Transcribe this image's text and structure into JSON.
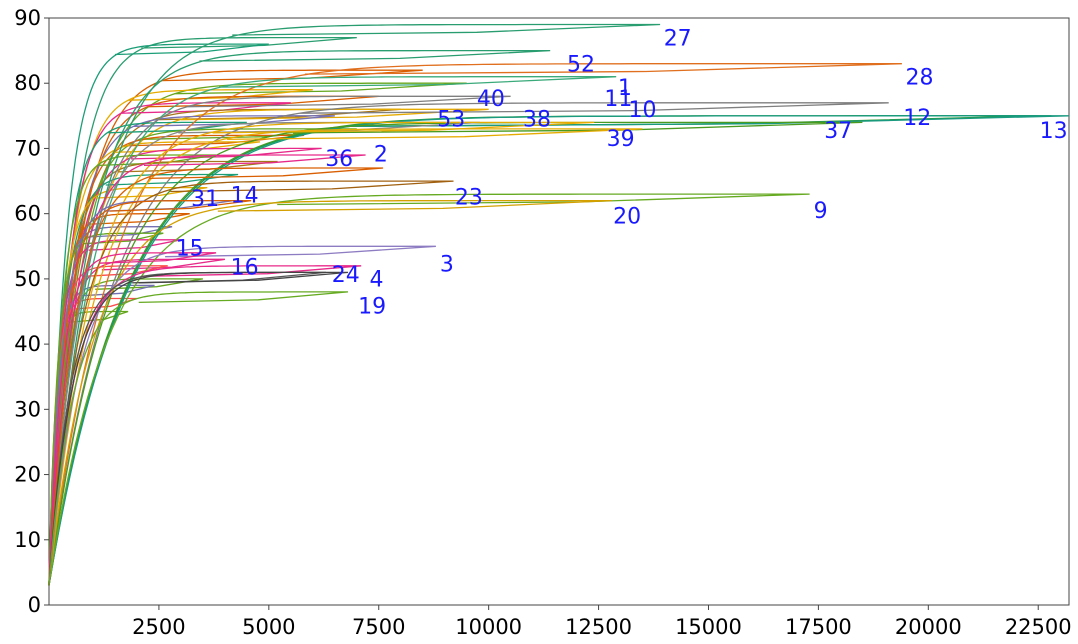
{
  "chart_data": {
    "type": "line",
    "title": "",
    "xlabel": "",
    "ylabel": "",
    "xlim": [
      0,
      23200
    ],
    "ylim": [
      0,
      90
    ],
    "grid": false,
    "legend": "none",
    "label_color": "#1a1aff",
    "x_ticks": [
      2500,
      5000,
      7500,
      10000,
      12500,
      15000,
      17500,
      20000,
      22500
    ],
    "x_tick_labels": [
      "2500",
      "5000",
      "7500",
      "10000",
      "12500",
      "15000",
      "17500",
      "20000",
      "22500"
    ],
    "y_ticks": [
      0,
      10,
      20,
      30,
      40,
      50,
      60,
      70,
      80,
      90
    ],
    "y_tick_labels": [
      "0",
      "10",
      "20",
      "30",
      "40",
      "50",
      "60",
      "70",
      "80",
      "90"
    ],
    "series": [
      {
        "label": "27",
        "plateau": 89,
        "x_end": 13900,
        "color": "#2a9d70",
        "label_x": 14300,
        "label_y": 85.8
      },
      {
        "label": "52",
        "plateau": 85,
        "x_end": 11400,
        "color": "#2a9d70",
        "label_x": 12100,
        "label_y": 81.8
      },
      {
        "label": "28",
        "plateau": 83,
        "x_end": 19400,
        "color": "#e07020",
        "label_x": 19800,
        "label_y": 79.8
      },
      {
        "label": "1",
        "plateau": 81,
        "x_end": 12900,
        "color": "#3aaa7a",
        "label_x": 13100,
        "label_y": 78.2
      },
      {
        "label": "40",
        "plateau": 78,
        "x_end": 10500,
        "color": "#7f7f7f",
        "label_x": 10050,
        "label_y": 76.5
      },
      {
        "label": "11",
        "plateau": 77,
        "x_end": 19100,
        "color": "#7f7f7f",
        "label_x": 12950,
        "label_y": 76.5
      },
      {
        "label": "10",
        "plateau": 75,
        "x_end": 22500,
        "color": "#4a9a20",
        "label_x": 13500,
        "label_y": 74.8
      },
      {
        "label": "12",
        "plateau": 75,
        "x_end": 22800,
        "color": "#1a9a50",
        "label_x": 19750,
        "label_y": 73.6
      },
      {
        "label": "13",
        "plateau": 75,
        "x_end": 23200,
        "color": "#1a9a80",
        "label_x": 22850,
        "label_y": 71.6
      },
      {
        "label": "37",
        "plateau": 74,
        "x_end": 18500,
        "color": "#4a9a20",
        "label_x": 17950,
        "label_y": 71.6
      },
      {
        "label": "53",
        "plateau": 74,
        "x_end": 9800,
        "color": "#888888",
        "label_x": 9150,
        "label_y": 73.4
      },
      {
        "label": "38",
        "plateau": 74,
        "x_end": 12400,
        "color": "#e6ab02",
        "label_x": 11100,
        "label_y": 73.4
      },
      {
        "label": "39",
        "plateau": 73,
        "x_end": 13500,
        "color": "#e6ab02",
        "label_x": 13000,
        "label_y": 70.4
      },
      {
        "label": "36",
        "plateau": 69,
        "x_end": 7200,
        "color": "#e7298a",
        "label_x": 6600,
        "label_y": 67.3
      },
      {
        "label": "2",
        "plateau": 67,
        "x_end": 7600,
        "color": "#d95f02",
        "label_x": 7550,
        "label_y": 68.0
      },
      {
        "label": "23",
        "plateau": 65,
        "x_end": 9200,
        "color": "#a06010",
        "label_x": 9550,
        "label_y": 61.4
      },
      {
        "label": "9",
        "plateau": 63,
        "x_end": 17300,
        "color": "#66aa22",
        "label_x": 17550,
        "label_y": 59.3
      },
      {
        "label": "20",
        "plateau": 62,
        "x_end": 12800,
        "color": "#d4a000",
        "label_x": 13150,
        "label_y": 58.5
      },
      {
        "label": "31",
        "plateau": 62,
        "x_end": 4200,
        "color": "#7570b3",
        "label_x": 3550,
        "label_y": 61.2
      },
      {
        "label": "14",
        "plateau": 62,
        "x_end": 4600,
        "color": "#d95f02",
        "label_x": 4450,
        "label_y": 61.7
      },
      {
        "label": "3",
        "plateau": 55,
        "x_end": 8800,
        "color": "#8e7cc3",
        "label_x": 9050,
        "label_y": 51.1
      },
      {
        "label": "15",
        "plateau": 54,
        "x_end": 3800,
        "color": "#e7298a",
        "label_x": 3200,
        "label_y": 53.6
      },
      {
        "label": "16",
        "plateau": 52,
        "x_end": 7100,
        "color": "#e7298a",
        "label_x": 4450,
        "label_y": 50.7
      },
      {
        "label": "24",
        "plateau": 51,
        "x_end": 6300,
        "color": "#555555",
        "label_x": 6750,
        "label_y": 49.5
      },
      {
        "label": "4",
        "plateau": 51,
        "x_end": 6800,
        "color": "#444444",
        "label_x": 7450,
        "label_y": 48.8
      },
      {
        "label": "19",
        "plateau": 48,
        "x_end": 6800,
        "color": "#66aa22",
        "label_x": 7350,
        "label_y": 44.7
      }
    ],
    "background_curves": [
      {
        "plateau": 87,
        "x_end": 7000,
        "color": "#2a9d70"
      },
      {
        "plateau": 86,
        "x_end": 5000,
        "color": "#1b9e77"
      },
      {
        "plateau": 82,
        "x_end": 8500,
        "color": "#d95f02"
      },
      {
        "plateau": 80,
        "x_end": 9500,
        "color": "#66a61e"
      },
      {
        "plateau": 79,
        "x_end": 6000,
        "color": "#e6ab02"
      },
      {
        "plateau": 78,
        "x_end": 7500,
        "color": "#d95f02"
      },
      {
        "plateau": 77,
        "x_end": 5500,
        "color": "#e7298a"
      },
      {
        "plateau": 76,
        "x_end": 8000,
        "color": "#a6761d"
      },
      {
        "plateau": 76,
        "x_end": 10000,
        "color": "#e6ab02"
      },
      {
        "plateau": 75,
        "x_end": 6500,
        "color": "#7570b3"
      },
      {
        "plateau": 74,
        "x_end": 4500,
        "color": "#1b9e77"
      },
      {
        "plateau": 73,
        "x_end": 7000,
        "color": "#66a61e"
      },
      {
        "plateau": 72,
        "x_end": 5800,
        "color": "#d95f02"
      },
      {
        "plateau": 71,
        "x_end": 4800,
        "color": "#e6ab02"
      },
      {
        "plateau": 70,
        "x_end": 6200,
        "color": "#e7298a"
      },
      {
        "plateau": 69,
        "x_end": 3800,
        "color": "#66a61e"
      },
      {
        "plateau": 68,
        "x_end": 5200,
        "color": "#a6761d"
      },
      {
        "plateau": 66,
        "x_end": 4300,
        "color": "#1b9e77"
      },
      {
        "plateau": 64,
        "x_end": 3600,
        "color": "#e6ab02"
      },
      {
        "plateau": 60,
        "x_end": 3200,
        "color": "#d95f02"
      },
      {
        "plateau": 58,
        "x_end": 2800,
        "color": "#7570b3"
      },
      {
        "plateau": 57,
        "x_end": 2600,
        "color": "#66a61e"
      },
      {
        "plateau": 56,
        "x_end": 3000,
        "color": "#e7298a"
      },
      {
        "plateau": 53,
        "x_end": 4000,
        "color": "#e7298a"
      },
      {
        "plateau": 52,
        "x_end": 2700,
        "color": "#fb4d4d"
      },
      {
        "plateau": 50,
        "x_end": 3500,
        "color": "#66a61e"
      },
      {
        "plateau": 49,
        "x_end": 2400,
        "color": "#7570b3"
      },
      {
        "plateau": 47,
        "x_end": 2000,
        "color": "#fb4d4d"
      },
      {
        "plateau": 45,
        "x_end": 1800,
        "color": "#66a61e"
      }
    ]
  }
}
